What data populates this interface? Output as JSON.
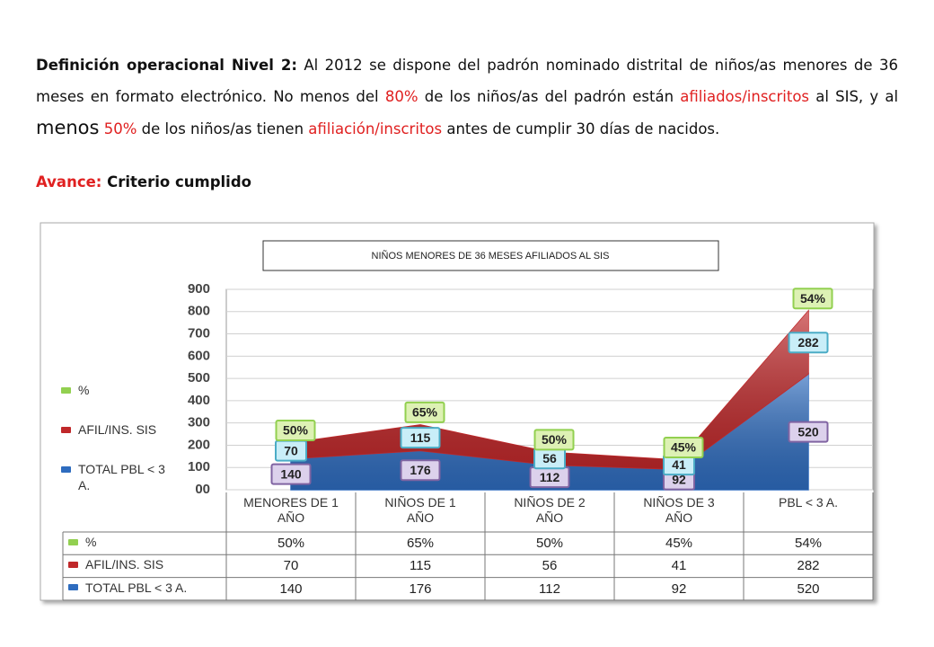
{
  "paragraph": {
    "runs": [
      "Definición operacional Nivel 2:",
      "Al 2012 se dispone del padrón nominado distrital de niños/as menores de 36 meses en formato electrónico. No menos del",
      "80%",
      "de los niños/as del padrón están",
      "afiliados/inscritos",
      "al SIS, y al",
      "menos",
      "50%",
      "de los niños/as tienen",
      "afiliación/inscritos",
      "antes de cumplir 30 días de nacidos."
    ]
  },
  "progress": {
    "label": "Avance:",
    "text": "Criterio cumplido"
  },
  "chart_data": {
    "type": "area",
    "stacked": true,
    "title": "NIÑOS MENORES DE 36 MESES AFILIADOS AL SIS",
    "categories": [
      "MENORES DE 1 AÑO",
      "NIÑOS DE 1 AÑO",
      "NIÑOS DE 2 AÑO",
      "NIÑOS DE 3 AÑO",
      "PBL < 3 A."
    ],
    "series": [
      {
        "name": "%",
        "color": "#92d050",
        "values": [
          50,
          65,
          50,
          45,
          54
        ],
        "value_labels": [
          "50%",
          "65%",
          "50%",
          "45%",
          "54%"
        ]
      },
      {
        "name": "AFIL/INS. SIS",
        "color": "#c0282a",
        "values": [
          70,
          115,
          56,
          41,
          282
        ]
      },
      {
        "name": "TOTAL PBL < 3 A.",
        "color": "#2e6cbf",
        "values": [
          140,
          176,
          112,
          92,
          520
        ]
      }
    ],
    "ylim": [
      0,
      900
    ],
    "yticks": [
      {
        "value": 0,
        "label": "00"
      },
      100,
      200,
      300,
      400,
      500,
      600,
      700,
      800,
      900
    ],
    "grid": true
  }
}
